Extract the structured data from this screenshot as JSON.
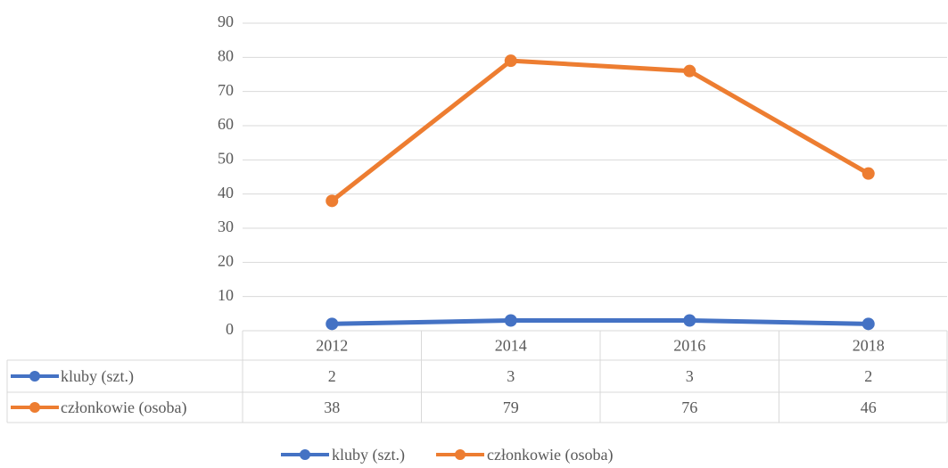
{
  "chart_data": {
    "type": "line",
    "categories": [
      "2012",
      "2014",
      "2016",
      "2018"
    ],
    "series": [
      {
        "name": "kluby (szt.)",
        "color": "#4472c4",
        "values": [
          2,
          3,
          3,
          2
        ]
      },
      {
        "name": "członkowie (osoba)",
        "color": "#ed7d31",
        "values": [
          38,
          79,
          76,
          46
        ]
      }
    ],
    "ylim": [
      0,
      90
    ],
    "yticks": [
      0,
      10,
      20,
      30,
      40,
      50,
      60,
      70,
      80,
      90
    ],
    "grid": true,
    "data_table": true,
    "legend": "bottom"
  }
}
